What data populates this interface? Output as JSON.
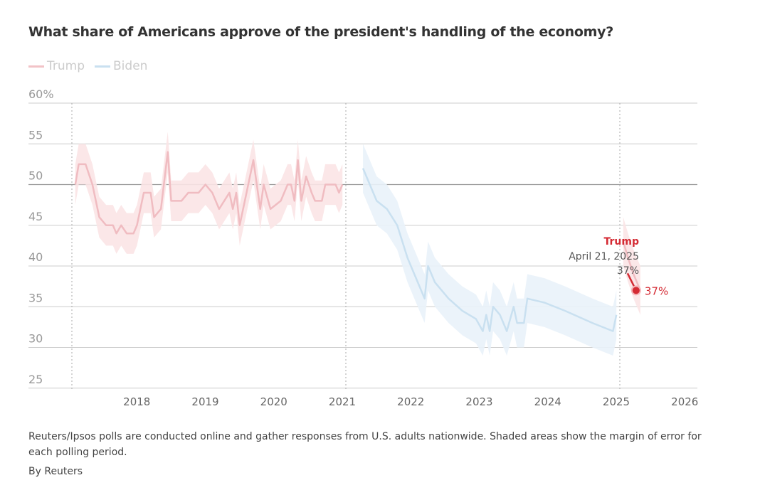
{
  "chart_data": {
    "type": "line",
    "title": "What share of Americans approve of the president's handling of the economy?",
    "xlabel": "",
    "ylabel": "",
    "ylim": [
      25,
      60
    ],
    "xlim": [
      2017,
      2026
    ],
    "y_ticks": [
      "60%",
      "55",
      "50",
      "45",
      "40",
      "35",
      "30",
      "25"
    ],
    "y_tick_values": [
      60,
      55,
      50,
      45,
      40,
      35,
      30,
      25
    ],
    "x_ticks": [
      "2018",
      "2019",
      "2020",
      "2021",
      "2022",
      "2023",
      "2024",
      "2025",
      "2026"
    ],
    "x_tick_values": [
      2018,
      2019,
      2020,
      2021,
      2022,
      2023,
      2024,
      2025,
      2026
    ],
    "grid": "horizontal",
    "term_markers": [
      2017,
      2021,
      2025
    ],
    "legend_position": "top-left",
    "legend": [
      {
        "name": "Trump",
        "color": "#f2c3c7"
      },
      {
        "name": "Biden",
        "color": "#c9e0f0"
      }
    ],
    "series": [
      {
        "name": "Trump",
        "color": "#f0bcc1",
        "band_color": "#fbe4e6",
        "margin": 2.5,
        "x": [
          2017.05,
          2017.1,
          2017.2,
          2017.3,
          2017.4,
          2017.5,
          2017.6,
          2017.65,
          2017.72,
          2017.8,
          2017.9,
          2017.95,
          2018.05,
          2018.15,
          2018.2,
          2018.3,
          2018.4,
          2018.45,
          2018.6,
          2018.7,
          2018.85,
          2018.95,
          2019.05,
          2019.15,
          2019.3,
          2019.35,
          2019.4,
          2019.45,
          2019.55,
          2019.65,
          2019.75,
          2019.8,
          2019.9,
          2020.05,
          2020.15,
          2020.2,
          2020.25,
          2020.3,
          2020.35,
          2020.42,
          2020.5,
          2020.55,
          2020.65,
          2020.7,
          2020.85,
          2020.9,
          2020.95
        ],
        "y": [
          50,
          52.5,
          52.5,
          50,
          46,
          45,
          45,
          44,
          45,
          44,
          44,
          45,
          49,
          49,
          46,
          47,
          54,
          48,
          48,
          49,
          49,
          50,
          49,
          47,
          49,
          47,
          49,
          45,
          49,
          53,
          47,
          50,
          47,
          48,
          50,
          50,
          48,
          53,
          48,
          51,
          49,
          48,
          48,
          50,
          50,
          49,
          50
        ]
      },
      {
        "name": "Biden",
        "color": "#c9e0f0",
        "band_color": "#e9f2fa",
        "margin": 3,
        "x": [
          2021.25,
          2021.45,
          2021.6,
          2021.75,
          2021.9,
          2022.05,
          2022.15,
          2022.2,
          2022.3,
          2022.5,
          2022.7,
          2022.9,
          2023.0,
          2023.05,
          2023.1,
          2023.15,
          2023.25,
          2023.35,
          2023.45,
          2023.5,
          2023.6,
          2023.65,
          2023.9,
          2024.2,
          2024.6,
          2024.9,
          2024.95
        ],
        "y": [
          52,
          48,
          47,
          45,
          41,
          38,
          36,
          40,
          38,
          36,
          34.5,
          33.5,
          32,
          34,
          32,
          35,
          34,
          32,
          35,
          33,
          33,
          36,
          35.5,
          34.5,
          33,
          32,
          34
        ]
      },
      {
        "name": "Trump",
        "color": "#f0bcc1",
        "band_color": "#fbe4e6",
        "margin": 3,
        "x": [
          2025.05,
          2025.12,
          2025.2,
          2025.3
        ],
        "y": [
          43,
          41,
          39,
          37
        ]
      }
    ],
    "highlight": {
      "series": "Trump",
      "date": "April 21, 2025",
      "x": 2025.3,
      "value": 37,
      "label": "37%",
      "color": "#d42a33"
    }
  },
  "tooltip": {
    "series": "Trump",
    "date": "April 21, 2025",
    "value": "37%"
  },
  "footer": {
    "note": "Reuters/Ipsos polls are conducted online and gather responses from U.S. adults nationwide. Shaded areas show the margin of error for each polling period.",
    "byline": "By Reuters"
  }
}
